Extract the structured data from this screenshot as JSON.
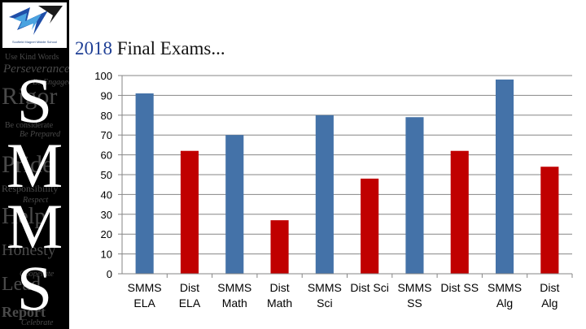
{
  "sidebar": {
    "logo_caption": "Scofield Magnet Middle School",
    "watermark_words": [
      "Use Kind Words",
      "Perseverance",
      "Be Engaged",
      "Rigor",
      "Be considerate",
      "Be Prepared",
      "Pride",
      "Responsibility",
      "Respect",
      "Help",
      "Honesty",
      "Cooperate",
      "Lead",
      "Report",
      "Celebrate"
    ],
    "letters": [
      "S",
      "M",
      "M",
      "S"
    ],
    "colors": {
      "background": "#000000",
      "letters": "#ffffff",
      "watermark": "#4a4a4a"
    }
  },
  "slide": {
    "title_year": "2018",
    "title_rest": " Final Exams..."
  },
  "chart_data": {
    "type": "bar",
    "categories": [
      "SMMS ELA",
      "Dist ELA",
      "SMMS Math",
      "Dist Math",
      "SMMS Sci",
      "Dist Sci",
      "SMMS SS",
      "Dist SS",
      "SMMS Alg",
      "Dist Alg"
    ],
    "category_lines": [
      [
        "SMMS",
        "ELA"
      ],
      [
        "Dist",
        "ELA"
      ],
      [
        "SMMS",
        "Math"
      ],
      [
        "Dist",
        "Math"
      ],
      [
        "SMMS",
        "Sci"
      ],
      [
        "Dist Sci",
        ""
      ],
      [
        "SMMS",
        "SS"
      ],
      [
        "Dist SS",
        ""
      ],
      [
        "SMMS",
        "Alg"
      ],
      [
        "Dist",
        "Alg"
      ]
    ],
    "values": [
      91,
      62,
      70,
      27,
      80,
      48,
      79,
      62,
      98,
      54
    ],
    "bar_colors": [
      "#4472a8",
      "#c00000",
      "#4472a8",
      "#c00000",
      "#4472a8",
      "#c00000",
      "#4472a8",
      "#c00000",
      "#4472a8",
      "#c00000"
    ],
    "yticks": [
      "0",
      "10",
      "20",
      "30",
      "40",
      "50",
      "60",
      "70",
      "80",
      "90",
      "100"
    ],
    "ylim": [
      0,
      100
    ],
    "grid": true
  }
}
